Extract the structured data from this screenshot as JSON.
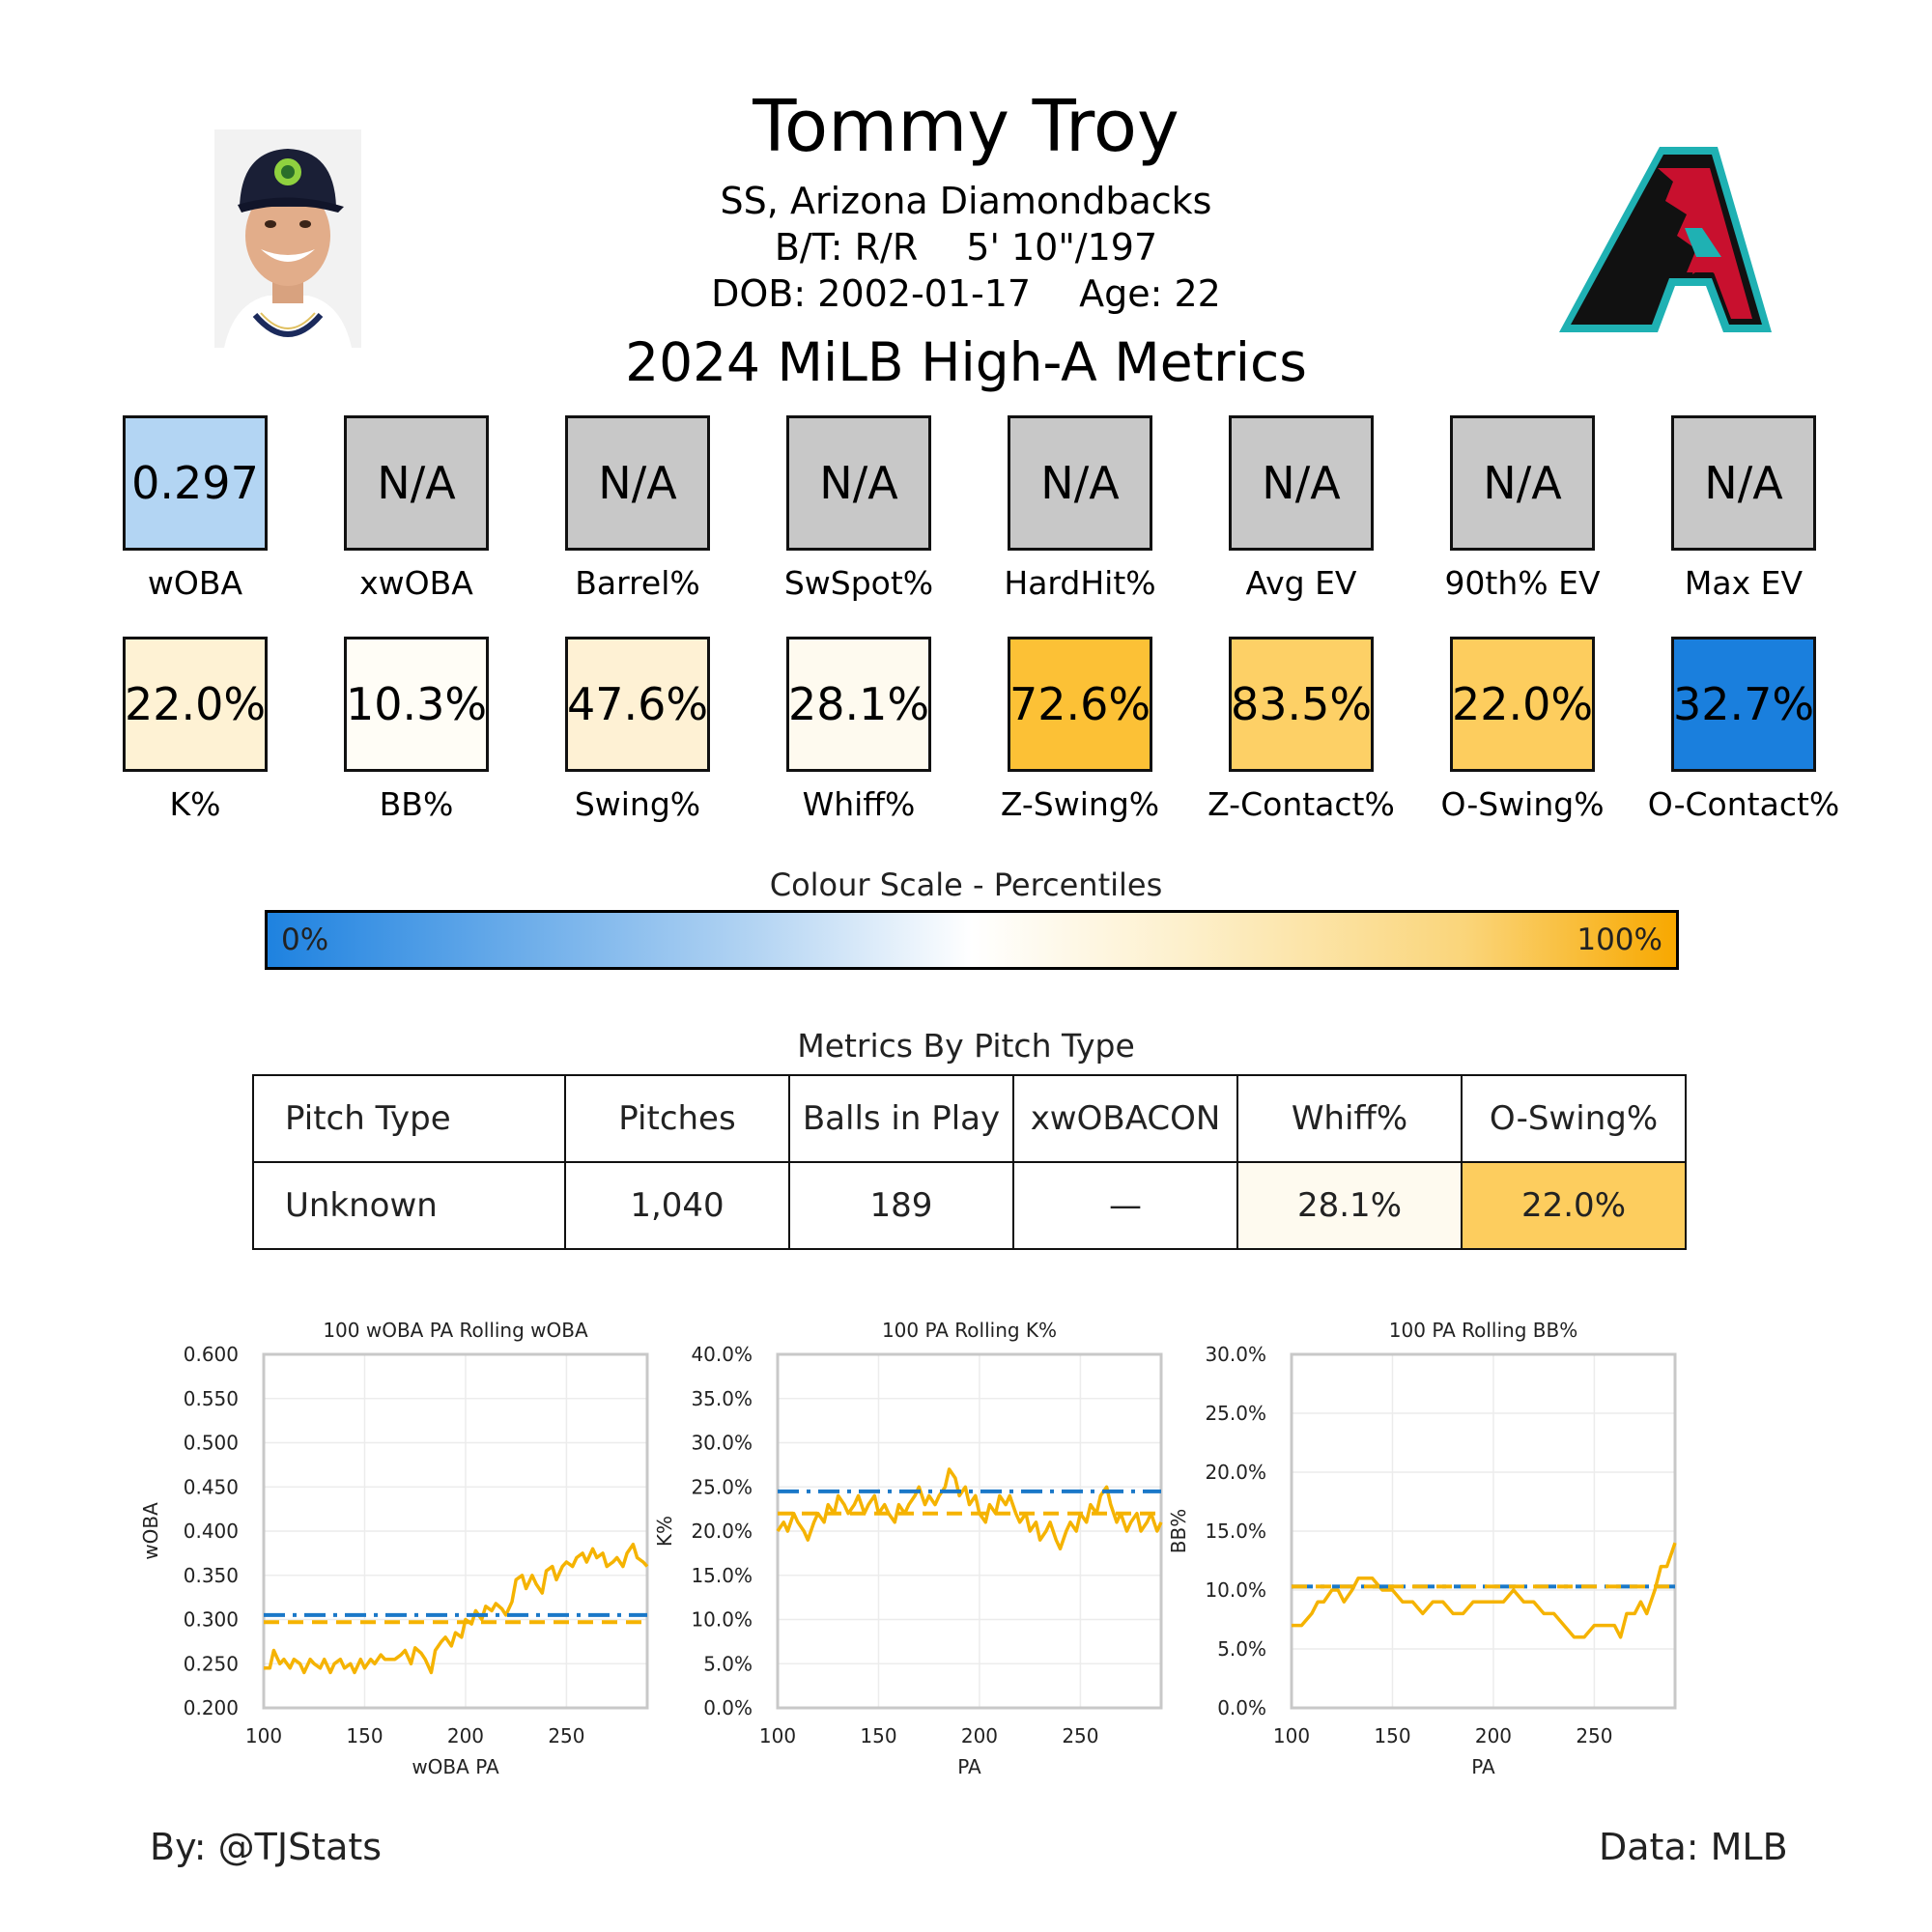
{
  "header": {
    "player_name": "Tommy Troy",
    "position_team": "SS, Arizona Diamondbacks",
    "bats_throws": "B/T: R/R",
    "height_weight": "5' 10\"/197",
    "dob": "DOB: 2002-01-17",
    "age": "Age: 22",
    "season_title": "2024 MiLB High-A Metrics"
  },
  "stat_rows": [
    [
      {
        "label": "wOBA",
        "value": "0.297",
        "color": "#b3d5f3"
      },
      {
        "label": "xwOBA",
        "value": "N/A",
        "color": "#c8c8c8"
      },
      {
        "label": "Barrel%",
        "value": "N/A",
        "color": "#c8c8c8"
      },
      {
        "label": "SwSpot%",
        "value": "N/A",
        "color": "#c8c8c8"
      },
      {
        "label": "HardHit%",
        "value": "N/A",
        "color": "#c8c8c8"
      },
      {
        "label": "Avg EV",
        "value": "N/A",
        "color": "#c8c8c8"
      },
      {
        "label": "90th% EV",
        "value": "N/A",
        "color": "#c8c8c8"
      },
      {
        "label": "Max EV",
        "value": "N/A",
        "color": "#c8c8c8"
      }
    ],
    [
      {
        "label": "K%",
        "value": "22.0%",
        "color": "#fef2d4"
      },
      {
        "label": "BB%",
        "value": "10.3%",
        "color": "#fffdf6"
      },
      {
        "label": "Swing%",
        "value": "47.6%",
        "color": "#fef1d4"
      },
      {
        "label": "Whiff%",
        "value": "28.1%",
        "color": "#fefaef"
      },
      {
        "label": "Z-Swing%",
        "value": "72.6%",
        "color": "#fcc136"
      },
      {
        "label": "Z-Contact%",
        "value": "83.5%",
        "color": "#fdd066"
      },
      {
        "label": "O-Swing%",
        "value": "22.0%",
        "color": "#fdcd5e"
      },
      {
        "label": "O-Contact%",
        "value": "32.7%",
        "color": "#1a7fdd"
      }
    ]
  ],
  "colour_scale": {
    "title": "Colour Scale - Percentiles",
    "min_label": "0%",
    "max_label": "100%"
  },
  "pitch_table": {
    "title": "Metrics By Pitch Type",
    "headers": [
      "Pitch Type",
      "Pitches",
      "Balls in Play",
      "xwOBACON",
      "Whiff%",
      "O-Swing%"
    ],
    "rows": [
      [
        "Unknown",
        "1,040",
        "189",
        "—",
        "28.1%",
        "22.0%"
      ]
    ],
    "cell_colors": [
      [
        "#ffffff",
        "#ffffff",
        "#ffffff",
        "#ffffff",
        "#fefaef",
        "#fdcd5e"
      ]
    ]
  },
  "chart_data": [
    {
      "type": "line",
      "title": "100 wOBA PA Rolling wOBA",
      "xlabel": "wOBA PA",
      "ylabel": "wOBA",
      "xlim": [
        100,
        290
      ],
      "ylim": [
        0.2,
        0.6
      ],
      "x_ticks": [
        100,
        150,
        200,
        250
      ],
      "y_ticks": [
        0.2,
        0.25,
        0.3,
        0.35,
        0.4,
        0.45,
        0.5,
        0.55,
        0.6
      ],
      "y_tick_labels": [
        "0.200",
        "0.250",
        "0.300",
        "0.350",
        "0.400",
        "0.450",
        "0.500",
        "0.550",
        "0.600"
      ],
      "grid": true,
      "series": [
        {
          "style": "solid",
          "color": "#f5b300",
          "x": [
            100,
            103,
            105,
            108,
            110,
            113,
            115,
            118,
            120,
            123,
            125,
            128,
            130,
            133,
            135,
            138,
            140,
            143,
            145,
            148,
            150,
            153,
            155,
            158,
            160,
            163,
            165,
            168,
            170,
            173,
            175,
            178,
            180,
            183,
            185,
            188,
            190,
            193,
            195,
            198,
            200,
            203,
            205,
            208,
            210,
            213,
            215,
            218,
            220,
            223,
            225,
            228,
            230,
            233,
            235,
            238,
            240,
            243,
            245,
            248,
            250,
            253,
            255,
            258,
            260,
            263,
            265,
            268,
            270,
            273,
            275,
            278,
            280,
            283,
            285,
            288,
            290
          ],
          "y": [
            0.245,
            0.245,
            0.265,
            0.25,
            0.255,
            0.245,
            0.255,
            0.25,
            0.24,
            0.255,
            0.25,
            0.245,
            0.255,
            0.24,
            0.25,
            0.255,
            0.245,
            0.25,
            0.24,
            0.255,
            0.245,
            0.255,
            0.25,
            0.26,
            0.255,
            0.255,
            0.255,
            0.26,
            0.265,
            0.25,
            0.268,
            0.262,
            0.255,
            0.24,
            0.265,
            0.275,
            0.28,
            0.27,
            0.285,
            0.28,
            0.3,
            0.295,
            0.31,
            0.3,
            0.315,
            0.31,
            0.318,
            0.312,
            0.305,
            0.32,
            0.345,
            0.35,
            0.335,
            0.35,
            0.34,
            0.33,
            0.355,
            0.36,
            0.345,
            0.36,
            0.365,
            0.36,
            0.37,
            0.375,
            0.365,
            0.38,
            0.37,
            0.375,
            0.36,
            0.365,
            0.37,
            0.36,
            0.375,
            0.385,
            0.37,
            0.365,
            0.36
          ]
        },
        {
          "style": "dash-dot",
          "color": "#1a78c8",
          "y_const": 0.305
        },
        {
          "style": "dashed",
          "color": "#f5b300",
          "y_const": 0.297
        }
      ]
    },
    {
      "type": "line",
      "title": "100 PA Rolling K%",
      "xlabel": "PA",
      "ylabel": "K%",
      "xlim": [
        100,
        290
      ],
      "ylim": [
        0,
        40
      ],
      "x_ticks": [
        100,
        150,
        200,
        250
      ],
      "y_ticks": [
        0,
        5,
        10,
        15,
        20,
        25,
        30,
        35,
        40
      ],
      "y_tick_labels": [
        "0.0%",
        "5.0%",
        "10.0%",
        "15.0%",
        "20.0%",
        "25.0%",
        "30.0%",
        "35.0%",
        "40.0%"
      ],
      "grid": true,
      "series": [
        {
          "style": "solid",
          "color": "#f5b300",
          "x": [
            100,
            103,
            105,
            108,
            110,
            113,
            115,
            118,
            120,
            123,
            125,
            128,
            130,
            133,
            135,
            138,
            140,
            143,
            145,
            148,
            150,
            153,
            155,
            158,
            160,
            163,
            165,
            168,
            170,
            173,
            175,
            178,
            180,
            183,
            185,
            188,
            190,
            193,
            195,
            198,
            200,
            203,
            205,
            208,
            210,
            213,
            215,
            218,
            220,
            223,
            225,
            228,
            230,
            233,
            235,
            238,
            240,
            243,
            245,
            248,
            250,
            253,
            255,
            258,
            260,
            263,
            265,
            268,
            270,
            273,
            275,
            278,
            280,
            283,
            285,
            288,
            290
          ],
          "y": [
            20,
            21,
            20,
            22,
            21,
            20,
            19,
            21,
            22,
            21,
            23,
            22,
            24,
            23,
            22,
            23,
            24,
            22,
            23,
            24,
            22,
            23,
            22,
            21,
            23,
            22,
            23,
            24,
            25,
            23,
            24,
            23,
            24,
            25,
            27,
            26,
            24,
            25,
            23,
            24,
            22,
            21,
            23,
            22,
            24,
            23,
            24,
            22,
            21,
            22,
            20,
            21,
            19,
            20,
            21,
            19,
            18,
            20,
            21,
            20,
            22,
            21,
            23,
            22,
            24,
            25,
            23,
            21,
            22,
            20,
            21,
            22,
            20,
            21,
            22,
            20,
            21
          ]
        },
        {
          "style": "dash-dot",
          "color": "#1a78c8",
          "y_const": 24.5
        },
        {
          "style": "dashed",
          "color": "#f5b300",
          "y_const": 22.0
        }
      ]
    },
    {
      "type": "line",
      "title": "100 PA Rolling BB%",
      "xlabel": "PA",
      "ylabel": "BB%",
      "xlim": [
        100,
        290
      ],
      "ylim": [
        0,
        30
      ],
      "x_ticks": [
        100,
        150,
        200,
        250
      ],
      "y_ticks": [
        0,
        5,
        10,
        15,
        20,
        25,
        30
      ],
      "y_tick_labels": [
        "0.0%",
        "5.0%",
        "10.0%",
        "15.0%",
        "20.0%",
        "25.0%",
        "30.0%"
      ],
      "grid": true,
      "series": [
        {
          "style": "solid",
          "color": "#f5b300",
          "x": [
            100,
            105,
            110,
            113,
            116,
            120,
            123,
            126,
            130,
            133,
            136,
            140,
            145,
            150,
            155,
            160,
            165,
            170,
            175,
            180,
            185,
            190,
            195,
            200,
            205,
            210,
            215,
            220,
            225,
            230,
            235,
            240,
            245,
            250,
            255,
            260,
            263,
            266,
            270,
            273,
            276,
            280,
            283,
            286,
            290
          ],
          "y": [
            7,
            7,
            8,
            9,
            9,
            10,
            10,
            9,
            10,
            11,
            11,
            11,
            10,
            10,
            9,
            9,
            8,
            9,
            9,
            8,
            8,
            9,
            9,
            9,
            9,
            10,
            9,
            9,
            8,
            8,
            7,
            6,
            6,
            7,
            7,
            7,
            6,
            8,
            8,
            9,
            8,
            10,
            12,
            12,
            14
          ]
        },
        {
          "style": "dash-dot",
          "color": "#1a78c8",
          "y_const": 10.3
        },
        {
          "style": "dashed",
          "color": "#f5b300",
          "y_const": 10.3
        }
      ]
    }
  ],
  "footer": {
    "credit_left": "By: @TJStats",
    "credit_right": "Data: MLB"
  }
}
